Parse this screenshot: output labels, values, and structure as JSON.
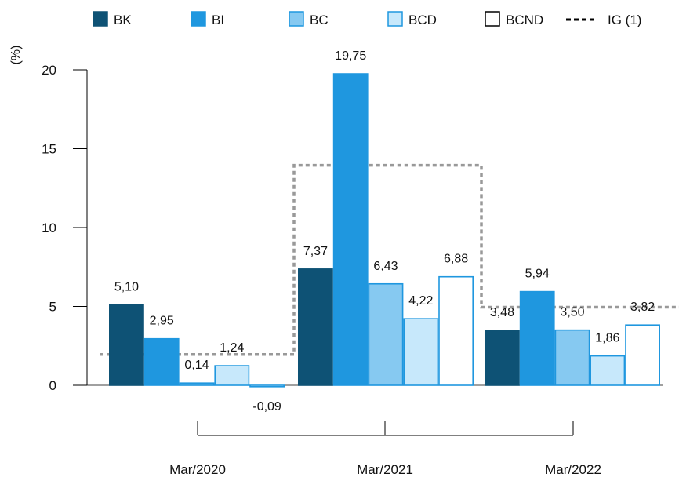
{
  "chart_data": {
    "type": "bar",
    "ylabel": "(%)",
    "ylim": [
      0,
      20
    ],
    "yticks": [
      0,
      5,
      10,
      15,
      20
    ],
    "grid": false,
    "legend_position": "top",
    "categories": [
      "Mar/2020",
      "Mar/2021",
      "Mar/2022"
    ],
    "series": [
      {
        "name": "BK",
        "color": "#0e5275",
        "border": "#0e5275",
        "values": [
          5.1,
          7.37,
          3.48
        ]
      },
      {
        "name": "BI",
        "color": "#1f97df",
        "border": "#1f97df",
        "values": [
          2.95,
          19.75,
          5.94
        ]
      },
      {
        "name": "BC",
        "color": "#86c9f1",
        "border": "#1f97df",
        "values": [
          0.14,
          6.43,
          3.5
        ]
      },
      {
        "name": "BCD",
        "color": "#c7e8fb",
        "border": "#1f97df",
        "values": [
          1.24,
          4.22,
          1.86
        ]
      },
      {
        "name": "BCND",
        "color": "#ffffff",
        "border": "#1f97df",
        "values": [
          -0.09,
          6.88,
          3.82
        ]
      }
    ],
    "data_labels": [
      [
        "5,10",
        "2,95",
        "0,14",
        "1,24",
        "-0,09"
      ],
      [
        "7,37",
        "19,75",
        "6,43",
        "4,22",
        "6,88"
      ],
      [
        "3,48",
        "5,94",
        "3,50",
        "1,86",
        "3,82"
      ]
    ],
    "reference_line": {
      "name": "IG (1)",
      "color": "#999999",
      "values": [
        1.95,
        13.95,
        4.95
      ]
    }
  }
}
